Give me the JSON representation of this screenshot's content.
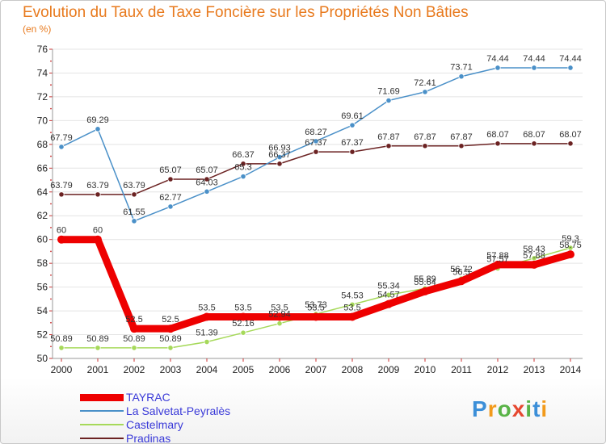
{
  "chart_data": {
    "type": "line",
    "title": "Evolution du Taux de Taxe Foncière sur les Propriétés Non Bâties",
    "ylabel": "(en %)",
    "xlabel": "",
    "ylim": [
      50,
      76
    ],
    "yticks": [
      50,
      52,
      54,
      56,
      58,
      60,
      62,
      64,
      66,
      68,
      70,
      72,
      74,
      76
    ],
    "categories": [
      "2000",
      "2001",
      "2002",
      "2003",
      "2004",
      "2005",
      "2006",
      "2007",
      "2008",
      "2009",
      "2010",
      "2011",
      "2012",
      "2013",
      "2014"
    ],
    "series": [
      {
        "name": "Pradinas",
        "color": "#6b2222",
        "values": [
          63.79,
          63.79,
          63.79,
          65.07,
          65.07,
          66.37,
          66.37,
          67.37,
          67.37,
          67.87,
          67.87,
          67.87,
          68.07,
          68.07,
          68.07
        ],
        "labels": [
          "63.79",
          "63.79",
          "63.79",
          "65.07",
          "65.07",
          "66.37",
          "66.37",
          "67.37",
          "67.37",
          "67.87",
          "67.87",
          "67.87",
          "68.07",
          "68.07",
          "68.07"
        ]
      },
      {
        "name": "La Salvetat-Peyralès",
        "color": "#4a90c8",
        "values": [
          67.79,
          69.29,
          61.55,
          62.77,
          64.03,
          65.3,
          66.93,
          68.27,
          69.61,
          71.69,
          72.41,
          73.71,
          74.44,
          74.44,
          74.44
        ],
        "labels": [
          "67.79",
          "69.29",
          "61.55",
          "62.77",
          "64.03",
          "65.3",
          "66.93",
          "68.27",
          "69.61",
          "71.69",
          "72.41",
          "73.71",
          "74.44",
          "74.44",
          "74.44"
        ]
      },
      {
        "name": "Castelmary",
        "color": "#a6d95a",
        "values": [
          50.89,
          50.89,
          50.89,
          50.89,
          51.39,
          52.16,
          52.94,
          53.73,
          54.53,
          55.34,
          55.89,
          56.72,
          57.57,
          58.43,
          59.3
        ],
        "labels": [
          "50.89",
          "50.89",
          "50.89",
          "50.89",
          "51.39",
          "52.16",
          "52.94",
          "53.73",
          "54.53",
          "55.34",
          "55.89",
          "56.72",
          "57.57",
          "58.43",
          "59.3"
        ]
      },
      {
        "name": "TAYRAC",
        "color": "#ee0000",
        "values": [
          60,
          60,
          52.5,
          52.5,
          53.5,
          53.5,
          53.5,
          53.5,
          53.5,
          54.57,
          55.64,
          56.5,
          57.88,
          57.88,
          58.75
        ],
        "labels": [
          "60",
          "60",
          "52.5",
          "52.5",
          "53.5",
          "53.5",
          "53.5",
          "53.5",
          "53.5",
          "54.57",
          "55.64",
          "56.5",
          "57.88",
          "57.88",
          "58.75"
        ]
      }
    ]
  },
  "legend": [
    {
      "name": "TAYRAC",
      "color": "#ee0000"
    },
    {
      "name": "La Salvetat-Peyralès",
      "color": "#4a90c8"
    },
    {
      "name": "Castelmary",
      "color": "#a6d95a"
    },
    {
      "name": "Pradinas",
      "color": "#6b2222"
    }
  ],
  "logo": {
    "text": "Proxiti",
    "colors": [
      "#3c8fd8",
      "#f29a1b",
      "#59b347",
      "#e64830",
      "#59b347",
      "#3c8fd8",
      "#f29a1b"
    ]
  }
}
